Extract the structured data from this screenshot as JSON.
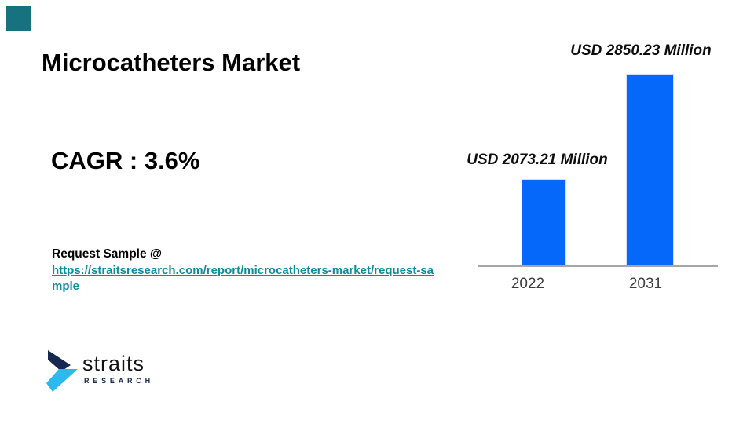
{
  "slide": {
    "title": "Microcatheters Market",
    "cagr_label": "CAGR : 3.6%",
    "request_sample": {
      "label": "Request Sample @",
      "url": "https://straitsresearch.com/report/microcatheters-market/request-sample",
      "display_line1": "https://straitsresearch.com/report/microcatheters-market/request-sa",
      "display_line2": "mple"
    }
  },
  "logo": {
    "wordmark": "straits",
    "subtext": "RESEARCH"
  },
  "colors": {
    "bar_blue": "#0667FB",
    "bar_edge": "#CFE0FA",
    "link_teal": "#0D8C9C",
    "corner_teal": "#17727F",
    "axis_gray": "#A6A6A6",
    "tick_text": "#3D3D3D",
    "logo_navy": "#16284F",
    "logo_cyan": "#2BB9EE"
  },
  "chart_data": {
    "type": "bar",
    "title": "",
    "categories": [
      "2022",
      "2031"
    ],
    "values": [
      2073.21,
      2850.23
    ],
    "value_labels": [
      "USD 2073.21 Million",
      "USD 2850.23 Million"
    ],
    "unit": "USD Million",
    "xlabel": "",
    "ylabel": "",
    "ylim": [
      1430,
      2880
    ],
    "y_axis_visible": false,
    "gridlines": false,
    "legend": "none",
    "bar_color": "#0667FB"
  }
}
